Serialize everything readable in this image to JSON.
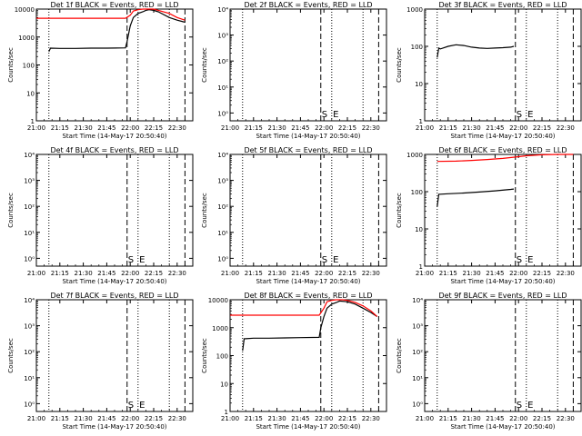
{
  "figure": {
    "colors": {
      "events": "#000000",
      "lld": "#ff0000"
    },
    "x_tick_labels": [
      "21:00",
      "21:15",
      "21:30",
      "21:45",
      "22:00",
      "22:15",
      "22:30"
    ],
    "xlabel": "Start Time (14-May-17 20:50:40)",
    "ylabel": "Counts/sec",
    "marker_start": "S",
    "marker_end": "E"
  },
  "chart_data": [
    {
      "type": "line",
      "title": "Det 1f BLACK = Events, RED = LLD",
      "scale": "log",
      "ylim": [
        1,
        10000
      ],
      "y_tick_labels": [
        "10000",
        "1000",
        "100",
        "10",
        "1"
      ],
      "xlim_min": [
        10,
        110
      ],
      "dotted_lines_min": [
        18,
        75,
        95
      ],
      "dashed_lines_min": [
        68,
        105
      ],
      "marker_s_min": null,
      "marker_e_min": null,
      "series": [
        {
          "color": "#000000",
          "points": [
            [
              18,
              300
            ],
            [
              19,
              400
            ],
            [
              25,
              390
            ],
            [
              35,
              390
            ],
            [
              45,
              400
            ],
            [
              55,
              400
            ],
            [
              67,
              410
            ],
            [
              68,
              700
            ],
            [
              70,
              2500
            ],
            [
              72,
              5000
            ],
            [
              75,
              7000
            ],
            [
              78,
              8000
            ],
            [
              80,
              9000
            ],
            [
              82,
              9500
            ],
            [
              85,
              9000
            ],
            [
              88,
              8000
            ],
            [
              95,
              5000
            ],
            [
              100,
              4000
            ],
            [
              104,
              3500
            ],
            [
              105,
              3400
            ]
          ]
        },
        {
          "color": "#ff0000",
          "points": [
            [
              10,
              4700
            ],
            [
              20,
              4700
            ],
            [
              30,
              4700
            ],
            [
              40,
              4700
            ],
            [
              50,
              4700
            ],
            [
              60,
              4700
            ],
            [
              67,
              4700
            ],
            [
              70,
              6000
            ],
            [
              72,
              8500
            ],
            [
              75,
              9500
            ],
            [
              78,
              10000
            ],
            [
              80,
              10000
            ],
            [
              85,
              10000
            ],
            [
              88,
              9000
            ],
            [
              95,
              7000
            ],
            [
              100,
              5000
            ],
            [
              105,
              4000
            ]
          ]
        }
      ]
    },
    {
      "type": "line",
      "title": "Det 2f BLACK = Events, RED = LLD",
      "scale": "log",
      "ylim": [
        0.5,
        10000
      ],
      "y_tick_labels": [
        "10⁴",
        "10³",
        "10²",
        "10¹",
        "10⁰"
      ],
      "xlim_min": [
        10,
        110
      ],
      "dotted_lines_min": [
        18,
        75,
        95
      ],
      "dashed_lines_min": [
        68,
        105
      ],
      "marker_s_min": 68,
      "marker_e_min": 74,
      "series": []
    },
    {
      "type": "line",
      "title": "Det 3f BLACK = Events, RED = LLD",
      "scale": "log",
      "ylim": [
        1,
        1000
      ],
      "y_tick_labels": [
        "1000",
        "100",
        "10",
        "1"
      ],
      "xlim_min": [
        10,
        110
      ],
      "dotted_lines_min": [
        18,
        75,
        95
      ],
      "dashed_lines_min": [
        68,
        105
      ],
      "marker_s_min": 68,
      "marker_e_min": 74,
      "series": [
        {
          "color": "#000000",
          "points": [
            [
              18,
              50
            ],
            [
              19,
              90
            ],
            [
              20,
              85
            ],
            [
              25,
              100
            ],
            [
              30,
              110
            ],
            [
              35,
              105
            ],
            [
              40,
              95
            ],
            [
              45,
              90
            ],
            [
              50,
              88
            ],
            [
              55,
              90
            ],
            [
              60,
              92
            ],
            [
              65,
              95
            ],
            [
              67,
              100
            ]
          ]
        }
      ]
    },
    {
      "type": "line",
      "title": "Det 4f BLACK = Events, RED = LLD",
      "scale": "log",
      "ylim": [
        0.5,
        10000
      ],
      "y_tick_labels": [
        "10⁴",
        "10³",
        "10²",
        "10¹",
        "10⁰"
      ],
      "xlim_min": [
        10,
        110
      ],
      "dotted_lines_min": [
        18,
        75,
        95
      ],
      "dashed_lines_min": [
        68,
        105
      ],
      "marker_s_min": 68,
      "marker_e_min": 74,
      "series": []
    },
    {
      "type": "line",
      "title": "Det 5f BLACK = Events, RED = LLD",
      "scale": "log",
      "ylim": [
        0.5,
        10000
      ],
      "y_tick_labels": [
        "10⁴",
        "10³",
        "10²",
        "10¹",
        "10⁰"
      ],
      "xlim_min": [
        10,
        110
      ],
      "dotted_lines_min": [
        18,
        75,
        95
      ],
      "dashed_lines_min": [
        68,
        105
      ],
      "marker_s_min": 68,
      "marker_e_min": 74,
      "series": []
    },
    {
      "type": "line",
      "title": "Det 6f BLACK = Events, RED = LLD",
      "scale": "log",
      "ylim": [
        1,
        1000
      ],
      "y_tick_labels": [
        "1000",
        "100",
        "10",
        "1"
      ],
      "xlim_min": [
        10,
        110
      ],
      "dotted_lines_min": [
        18,
        75,
        95
      ],
      "dashed_lines_min": [
        68,
        105
      ],
      "marker_s_min": 68,
      "marker_e_min": 74,
      "series": [
        {
          "color": "#000000",
          "points": [
            [
              18,
              40
            ],
            [
              19,
              85
            ],
            [
              25,
              88
            ],
            [
              35,
              92
            ],
            [
              45,
              98
            ],
            [
              55,
              105
            ],
            [
              65,
              115
            ],
            [
              67,
              118
            ]
          ]
        },
        {
          "color": "#ff0000",
          "points": [
            [
              18,
              650
            ],
            [
              30,
              660
            ],
            [
              40,
              690
            ],
            [
              50,
              730
            ],
            [
              60,
              780
            ],
            [
              68,
              850
            ],
            [
              75,
              920
            ],
            [
              85,
              980
            ],
            [
              95,
              1000
            ],
            [
              100,
              1000
            ],
            [
              105,
              1000
            ]
          ]
        }
      ]
    },
    {
      "type": "line",
      "title": "Det 7f BLACK = Events, RED = LLD",
      "scale": "log",
      "ylim": [
        0.5,
        10000
      ],
      "y_tick_labels": [
        "10⁴",
        "10³",
        "10²",
        "10¹",
        "10⁰"
      ],
      "xlim_min": [
        10,
        110
      ],
      "dotted_lines_min": [
        18,
        75,
        95
      ],
      "dashed_lines_min": [
        68,
        105
      ],
      "marker_s_min": 68,
      "marker_e_min": 74,
      "series": []
    },
    {
      "type": "line",
      "title": "Det 8f BLACK = Events, RED = LLD",
      "scale": "log",
      "ylim": [
        1,
        10000
      ],
      "y_tick_labels": [
        "10000",
        "1000",
        "100",
        "10",
        "1"
      ],
      "xlim_min": [
        10,
        110
      ],
      "dotted_lines_min": [
        18,
        75,
        95
      ],
      "dashed_lines_min": [
        68,
        105
      ],
      "marker_s_min": null,
      "marker_e_min": null,
      "series": [
        {
          "color": "#000000",
          "points": [
            [
              18,
              150
            ],
            [
              19,
              400
            ],
            [
              25,
              420
            ],
            [
              35,
              420
            ],
            [
              45,
              430
            ],
            [
              55,
              440
            ],
            [
              67,
              450
            ],
            [
              68,
              1000
            ],
            [
              70,
              2500
            ],
            [
              72,
              5000
            ],
            [
              75,
              7000
            ],
            [
              78,
              8000
            ],
            [
              80,
              9000
            ],
            [
              85,
              8500
            ],
            [
              90,
              7000
            ],
            [
              95,
              5000
            ],
            [
              100,
              3500
            ],
            [
              104,
              2500
            ]
          ]
        },
        {
          "color": "#ff0000",
          "points": [
            [
              10,
              2800
            ],
            [
              20,
              2800
            ],
            [
              30,
              2800
            ],
            [
              40,
              2800
            ],
            [
              50,
              2800
            ],
            [
              60,
              2800
            ],
            [
              67,
              2800
            ],
            [
              70,
              5000
            ],
            [
              72,
              8500
            ],
            [
              75,
              9500
            ],
            [
              78,
              10000
            ],
            [
              82,
              10000
            ],
            [
              85,
              9500
            ],
            [
              90,
              8000
            ],
            [
              95,
              6000
            ],
            [
              100,
              4000
            ],
            [
              104,
              2500
            ]
          ]
        }
      ]
    },
    {
      "type": "line",
      "title": "Det 9f BLACK = Events, RED = LLD",
      "scale": "log",
      "ylim": [
        0.5,
        10000
      ],
      "y_tick_labels": [
        "10⁴",
        "10³",
        "10²",
        "10¹",
        "10⁰"
      ],
      "xlim_min": [
        10,
        110
      ],
      "dotted_lines_min": [
        18,
        75,
        95
      ],
      "dashed_lines_min": [
        68,
        105
      ],
      "marker_s_min": 68,
      "marker_e_min": 74,
      "series": []
    }
  ]
}
